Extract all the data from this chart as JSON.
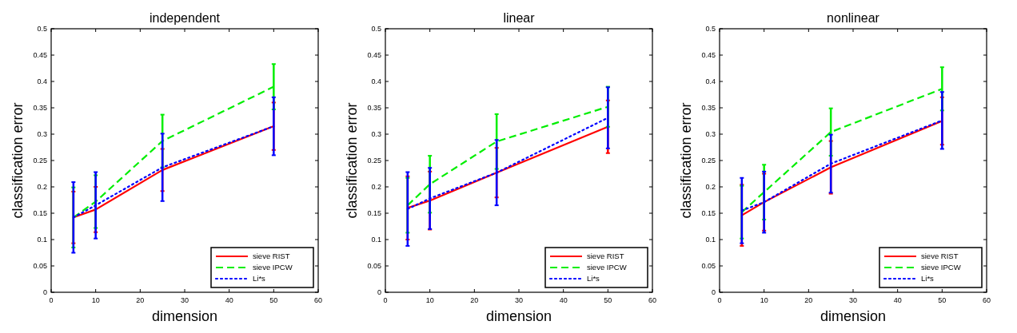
{
  "chart_data": [
    {
      "type": "line",
      "title": "independent",
      "xlabel": "dimension",
      "ylabel": "classification error",
      "x": [
        5,
        10,
        25,
        50
      ],
      "xlim": [
        0,
        60
      ],
      "xticks": [
        0,
        10,
        20,
        30,
        40,
        50,
        60
      ],
      "ylim": [
        0,
        0.5
      ],
      "yticks": [
        0,
        0.05,
        0.1,
        0.15,
        0.2,
        0.25,
        0.3,
        0.35,
        0.4,
        0.45,
        0.5
      ],
      "legend": "bottom right",
      "grid": false,
      "series": [
        {
          "name": "sieve RIST",
          "color": "#ff0000",
          "line_style": "solid",
          "values": [
            0.142,
            0.157,
            0.232,
            0.315
          ],
          "errors": [
            0.049,
            0.043,
            0.04,
            0.045
          ]
        },
        {
          "name": "sieve IPCW",
          "color": "#00ee00",
          "line_style": "dashed",
          "values": [
            0.142,
            0.172,
            0.287,
            0.39
          ],
          "errors": [
            0.057,
            0.05,
            0.05,
            0.043
          ]
        },
        {
          "name": "Li*s",
          "color": "#0000ff",
          "line_style": "dotted",
          "values": [
            0.142,
            0.165,
            0.237,
            0.315
          ],
          "errors": [
            0.067,
            0.063,
            0.064,
            0.055
          ]
        }
      ]
    },
    {
      "type": "line",
      "title": "linear",
      "xlabel": "dimension",
      "ylabel": "classification error",
      "x": [
        5,
        10,
        25,
        50
      ],
      "xlim": [
        0,
        60
      ],
      "xticks": [
        0,
        10,
        20,
        30,
        40,
        50,
        60
      ],
      "ylim": [
        0,
        0.5
      ],
      "yticks": [
        0,
        0.05,
        0.1,
        0.15,
        0.2,
        0.25,
        0.3,
        0.35,
        0.4,
        0.45,
        0.5
      ],
      "legend": "bottom right",
      "grid": false,
      "series": [
        {
          "name": "sieve RIST",
          "color": "#ff0000",
          "line_style": "solid",
          "values": [
            0.16,
            0.174,
            0.227,
            0.314
          ],
          "errors": [
            0.06,
            0.055,
            0.047,
            0.05
          ]
        },
        {
          "name": "sieve IPCW",
          "color": "#00ee00",
          "line_style": "dashed",
          "values": [
            0.165,
            0.205,
            0.286,
            0.352
          ],
          "errors": [
            0.052,
            0.054,
            0.052,
            0.038
          ]
        },
        {
          "name": "Li*s",
          "color": "#0000ff",
          "line_style": "dotted",
          "values": [
            0.158,
            0.178,
            0.227,
            0.331
          ],
          "errors": [
            0.07,
            0.058,
            0.062,
            0.058
          ]
        }
      ]
    },
    {
      "type": "line",
      "title": "nonlinear",
      "xlabel": "dimension",
      "ylabel": "classification error",
      "x": [
        5,
        10,
        25,
        50
      ],
      "xlim": [
        0,
        60
      ],
      "xticks": [
        0,
        10,
        20,
        30,
        40,
        50,
        60
      ],
      "ylim": [
        0,
        0.5
      ],
      "yticks": [
        0,
        0.05,
        0.1,
        0.15,
        0.2,
        0.25,
        0.3,
        0.35,
        0.4,
        0.45,
        0.5
      ],
      "legend": "bottom right",
      "grid": false,
      "series": [
        {
          "name": "sieve RIST",
          "color": "#ff0000",
          "line_style": "solid",
          "values": [
            0.146,
            0.171,
            0.237,
            0.325
          ],
          "errors": [
            0.058,
            0.054,
            0.05,
            0.045
          ]
        },
        {
          "name": "sieve IPCW",
          "color": "#00ee00",
          "line_style": "dashed",
          "values": [
            0.152,
            0.19,
            0.304,
            0.386
          ],
          "errors": [
            0.05,
            0.052,
            0.045,
            0.041
          ]
        },
        {
          "name": "Li*s",
          "color": "#0000ff",
          "line_style": "dotted",
          "values": [
            0.155,
            0.171,
            0.244,
            0.326
          ],
          "errors": [
            0.062,
            0.058,
            0.055,
            0.054
          ]
        }
      ]
    }
  ]
}
